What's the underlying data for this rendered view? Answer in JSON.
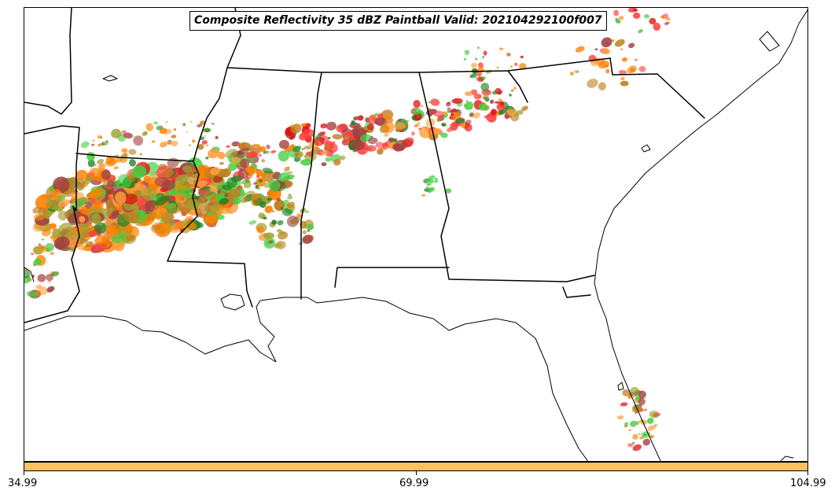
{
  "map": {
    "title": "Composite Reflectivity 35 dBZ Paintball Valid: 202104292100f007",
    "region": "Southeastern United States",
    "layers": [
      "state-boundaries",
      "coastline",
      "reflectivity-paintball"
    ],
    "paintball_colors": [
      "#ff4040",
      "#e01010",
      "#ff8000",
      "#ffa040",
      "#40d040",
      "#208020",
      "#a0a030",
      "#a04040",
      "#c08020"
    ]
  },
  "colorbar": {
    "color": "#ffc060",
    "tick_labels": [
      "34.99",
      "69.99",
      "104.99"
    ]
  }
}
